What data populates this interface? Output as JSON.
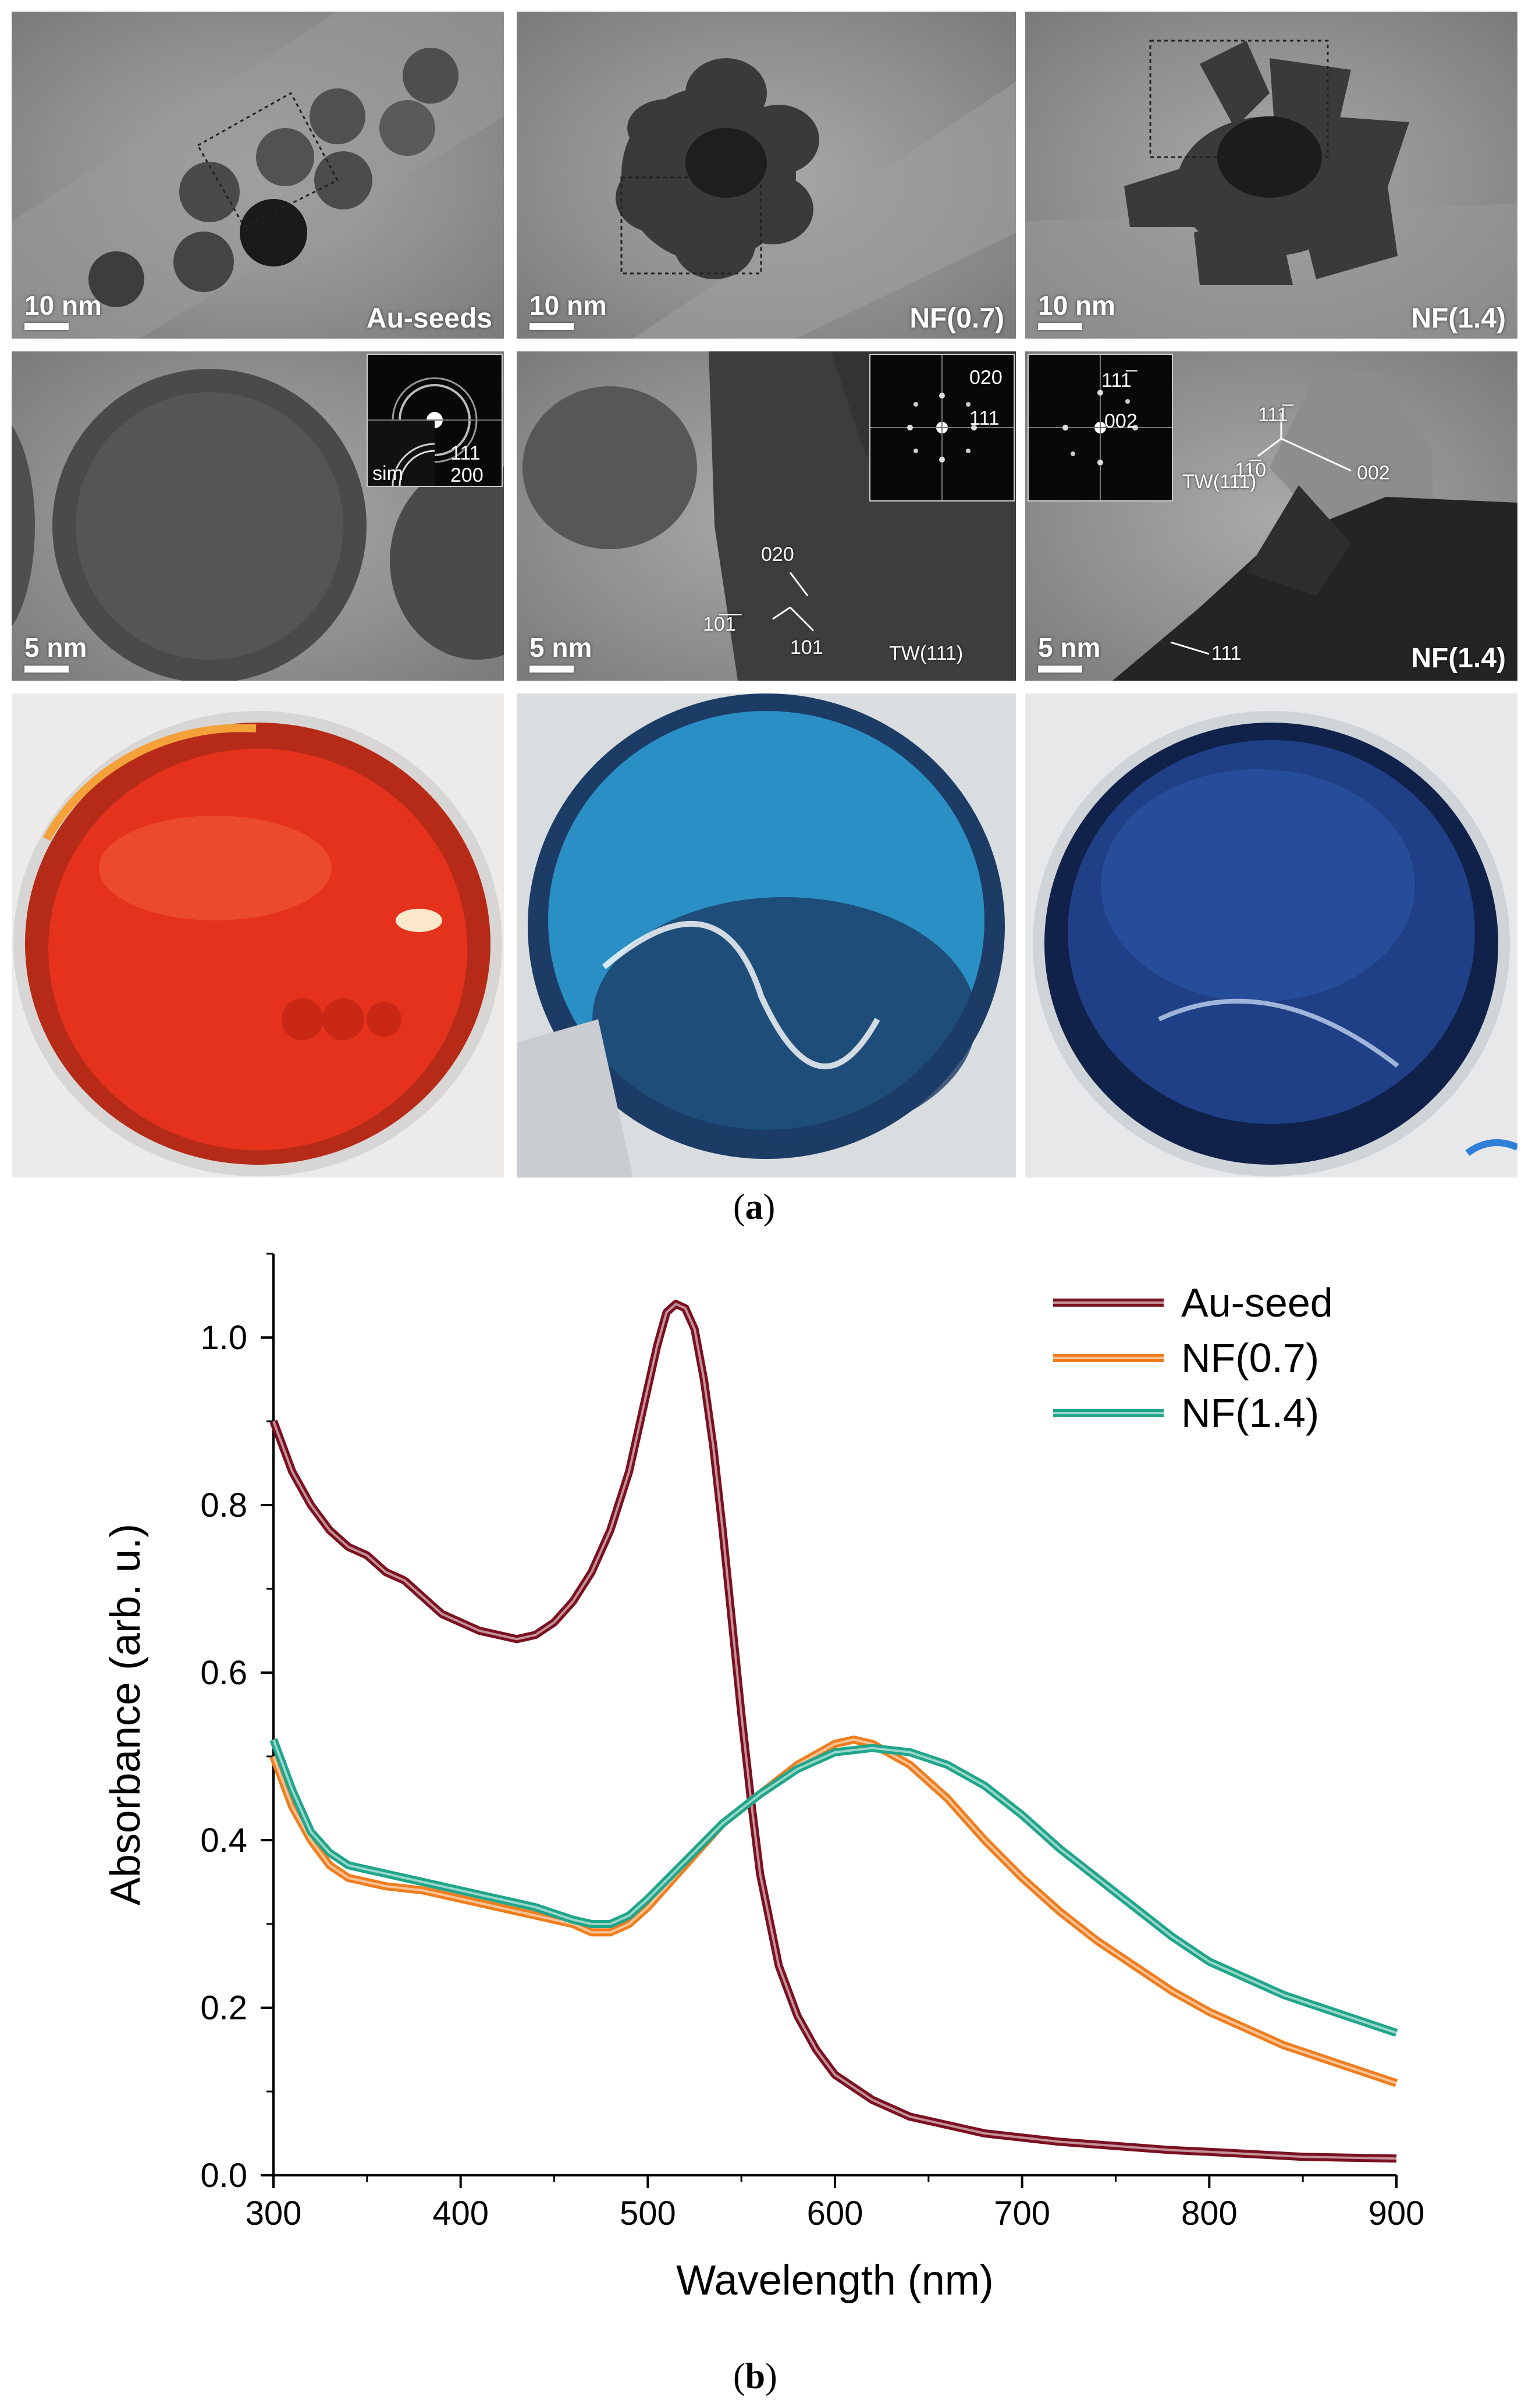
{
  "figure": {
    "caption_a": "a",
    "caption_b": "b"
  },
  "tem_row1": [
    {
      "label": "Au-seeds",
      "scale": "10 nm"
    },
    {
      "label": "NF(0.7)",
      "scale": "10 nm"
    },
    {
      "label": "NF(1.4)",
      "scale": "10 nm"
    }
  ],
  "tem_row2": [
    {
      "label": "",
      "scale": "5 nm",
      "inset_labels": [
        "111",
        "200",
        "sim"
      ]
    },
    {
      "label": "",
      "scale": "5 nm",
      "inset_labels": [
        "020",
        "111"
      ],
      "annotations": [
        "020",
        "10̅1̅",
        "101",
        "TW(111)"
      ]
    },
    {
      "label": "NF(1.4)",
      "scale": "5 nm",
      "inset_labels": [
        "111̅",
        "002"
      ],
      "annotations": [
        "111̅",
        "11̅0",
        "002",
        "TW(111)",
        "111"
      ]
    }
  ],
  "photos": [
    {
      "liquid_color": "#e5321c",
      "rim_color": "#b62a18"
    },
    {
      "liquid_color": "#2a8fc4",
      "rim_color": "#1c3c66"
    },
    {
      "liquid_color": "#1f3f86",
      "rim_color": "#10214a"
    }
  ],
  "chart_data": {
    "type": "line",
    "title": "",
    "xlabel": "Wavelength (nm)",
    "ylabel": "Absorbance (arb. u.)",
    "xlim": [
      300,
      900
    ],
    "ylim": [
      0.0,
      1.1
    ],
    "xticks": [
      300,
      400,
      500,
      600,
      700,
      800,
      900
    ],
    "yticks": [
      0.0,
      0.2,
      0.4,
      0.6,
      0.8,
      1.0
    ],
    "xtick_labels": [
      "300",
      "400",
      "500",
      "600",
      "700",
      "800",
      "900"
    ],
    "ytick_labels": [
      "0.0",
      "0.2",
      "0.4",
      "0.6",
      "0.8",
      "1.0"
    ],
    "legend_position": "top-right",
    "grid": false,
    "series": [
      {
        "name": "Au-seed",
        "color": "#7b1020",
        "x": [
          300,
          310,
          320,
          330,
          340,
          350,
          360,
          370,
          380,
          390,
          400,
          410,
          420,
          430,
          440,
          450,
          460,
          470,
          480,
          490,
          500,
          505,
          510,
          515,
          520,
          525,
          530,
          535,
          540,
          545,
          550,
          555,
          560,
          570,
          580,
          590,
          600,
          620,
          640,
          660,
          680,
          700,
          720,
          750,
          780,
          800,
          850,
          900
        ],
        "y": [
          0.9,
          0.84,
          0.8,
          0.77,
          0.75,
          0.74,
          0.72,
          0.71,
          0.69,
          0.67,
          0.66,
          0.65,
          0.645,
          0.64,
          0.645,
          0.66,
          0.685,
          0.72,
          0.77,
          0.84,
          0.94,
          0.99,
          1.03,
          1.04,
          1.035,
          1.01,
          0.95,
          0.87,
          0.77,
          0.66,
          0.55,
          0.45,
          0.36,
          0.25,
          0.19,
          0.15,
          0.12,
          0.09,
          0.07,
          0.06,
          0.05,
          0.045,
          0.04,
          0.035,
          0.03,
          0.028,
          0.022,
          0.02
        ]
      },
      {
        "name": "NF(0.7)",
        "color": "#f07d1e",
        "x": [
          300,
          310,
          320,
          330,
          340,
          350,
          360,
          380,
          400,
          420,
          440,
          460,
          470,
          480,
          490,
          500,
          520,
          540,
          560,
          580,
          600,
          610,
          620,
          640,
          660,
          680,
          700,
          720,
          740,
          760,
          780,
          800,
          820,
          840,
          860,
          880,
          900
        ],
        "y": [
          0.5,
          0.44,
          0.4,
          0.37,
          0.355,
          0.35,
          0.345,
          0.34,
          0.33,
          0.32,
          0.31,
          0.3,
          0.29,
          0.29,
          0.3,
          0.32,
          0.37,
          0.42,
          0.455,
          0.49,
          0.515,
          0.52,
          0.515,
          0.49,
          0.45,
          0.4,
          0.355,
          0.315,
          0.28,
          0.25,
          0.22,
          0.195,
          0.175,
          0.155,
          0.14,
          0.125,
          0.11
        ]
      },
      {
        "name": "NF(1.4)",
        "color": "#1fa58a",
        "x": [
          300,
          310,
          320,
          330,
          340,
          350,
          360,
          380,
          400,
          420,
          440,
          460,
          470,
          480,
          490,
          500,
          520,
          540,
          560,
          580,
          600,
          620,
          640,
          660,
          680,
          700,
          720,
          740,
          760,
          780,
          800,
          820,
          840,
          860,
          880,
          900
        ],
        "y": [
          0.52,
          0.46,
          0.41,
          0.385,
          0.37,
          0.365,
          0.36,
          0.35,
          0.34,
          0.33,
          0.32,
          0.305,
          0.3,
          0.3,
          0.31,
          0.33,
          0.375,
          0.42,
          0.455,
          0.485,
          0.505,
          0.51,
          0.505,
          0.49,
          0.465,
          0.43,
          0.39,
          0.355,
          0.32,
          0.285,
          0.255,
          0.235,
          0.215,
          0.2,
          0.185,
          0.17
        ]
      }
    ]
  }
}
